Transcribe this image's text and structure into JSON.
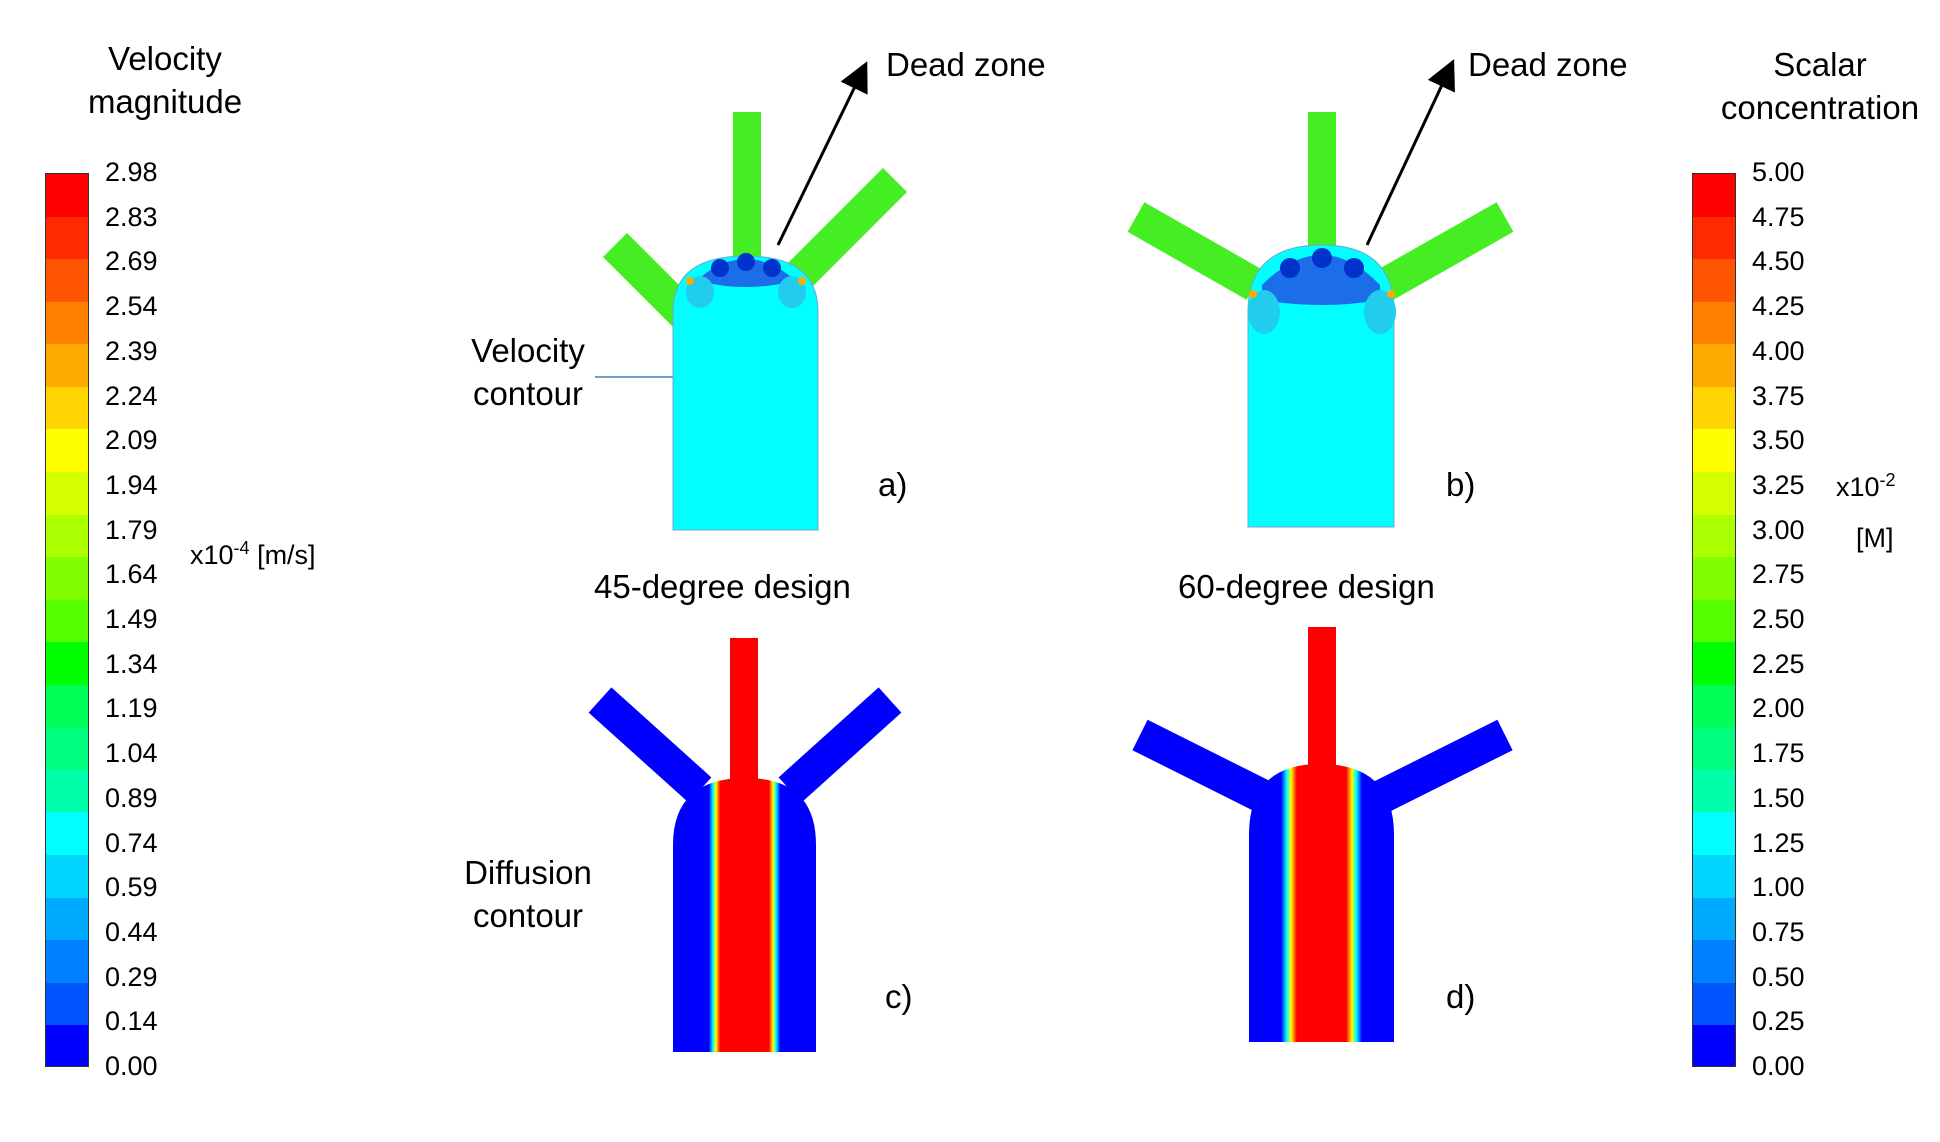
{
  "legend_left": {
    "title_line1": "Velocity",
    "title_line2": "magnitude",
    "ticks": [
      "2.98",
      "2.83",
      "2.69",
      "2.54",
      "2.39",
      "2.24",
      "2.09",
      "1.94",
      "1.79",
      "1.64",
      "1.49",
      "1.34",
      "1.19",
      "1.04",
      "0.89",
      "0.74",
      "0.59",
      "0.44",
      "0.29",
      "0.14",
      "0.00"
    ],
    "unit_prefix": "x10",
    "unit_exp": "-4",
    "unit_suffix": " [m/s]"
  },
  "legend_right": {
    "title_line1": "Scalar",
    "title_line2": "concentration",
    "ticks": [
      "5.00",
      "4.75",
      "4.50",
      "4.25",
      "4.00",
      "3.75",
      "3.50",
      "3.25",
      "3.00",
      "2.75",
      "2.50",
      "2.25",
      "2.00",
      "1.75",
      "1.50",
      "1.25",
      "1.00",
      "0.75",
      "0.50",
      "0.25",
      "0.00"
    ],
    "unit_prefix": "x10",
    "unit_exp": "-2",
    "unit_line2": "[M]"
  },
  "colors": {
    "scale": [
      "#ff0000",
      "#ff2a00",
      "#ff5500",
      "#ff7f00",
      "#ffaa00",
      "#ffd400",
      "#ffff00",
      "#d4ff00",
      "#aaff00",
      "#7fff00",
      "#55ff00",
      "#00ff00",
      "#00ff55",
      "#00ff7f",
      "#00ffaa",
      "#00ffff",
      "#00d4ff",
      "#00aaff",
      "#0080ff",
      "#0055ff",
      "#0000ff"
    ],
    "velocity_arm": "#44ee22",
    "velocity_body": "#00ffff",
    "dead_zone": "#0044dd",
    "diffusion_low": "#0000ff",
    "diffusion_high": "#ff0000"
  },
  "annotations": {
    "dead_zone_a": "Dead zone",
    "dead_zone_b": "Dead zone",
    "velocity_contour_line1": "Velocity",
    "velocity_contour_line2": "contour",
    "diffusion_contour_line1": "Diffusion",
    "diffusion_contour_line2": "contour"
  },
  "panels": {
    "a": "a)",
    "b": "b)",
    "c": "c)",
    "d": "d)",
    "design_45": "45-degree design",
    "design_60": "60-degree design"
  }
}
